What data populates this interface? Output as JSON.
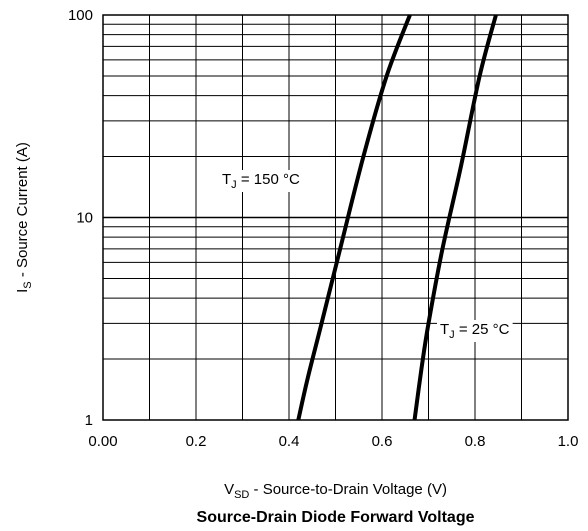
{
  "chart_data": {
    "type": "line",
    "title": "Source-Drain Diode Forward Voltage",
    "xlabel": {
      "main": "V",
      "sub": "SD",
      "rest": " - Source-to-Drain Voltage (V)"
    },
    "ylabel": {
      "main": "I",
      "sub": "S",
      "rest": " - Source Current (A)"
    },
    "xlim": [
      0.0,
      1.0
    ],
    "ylim": [
      1,
      100
    ],
    "yscale": "log",
    "grid": true,
    "x_ticks": [
      0.0,
      0.2,
      0.4,
      0.6,
      0.8,
      1.0
    ],
    "x_tick_labels": [
      "0.00",
      "0.2",
      "0.4",
      "0.6",
      "0.8",
      "1.0"
    ],
    "y_ticks": [
      1,
      10,
      100
    ],
    "y_tick_labels": [
      "1",
      "10",
      "100"
    ],
    "series": [
      {
        "name": "TJ = 150 °C",
        "label": {
          "main": "T",
          "sub": "J",
          "rest": " = 150 °C"
        },
        "x": [
          0.42,
          0.44,
          0.47,
          0.51,
          0.56,
          0.61,
          0.66
        ],
        "y": [
          1,
          1.6,
          3,
          7,
          20,
          50,
          100
        ]
      },
      {
        "name": "TJ = 25 °C",
        "label": {
          "main": "T",
          "sub": "J",
          "rest": " = 25 °C"
        },
        "x": [
          0.67,
          0.685,
          0.7,
          0.73,
          0.77,
          0.81,
          0.845
        ],
        "y": [
          1,
          1.8,
          3,
          7,
          18,
          50,
          100
        ]
      }
    ],
    "colors": {
      "line": "#000000",
      "grid": "#000000",
      "background": "#ffffff"
    }
  }
}
